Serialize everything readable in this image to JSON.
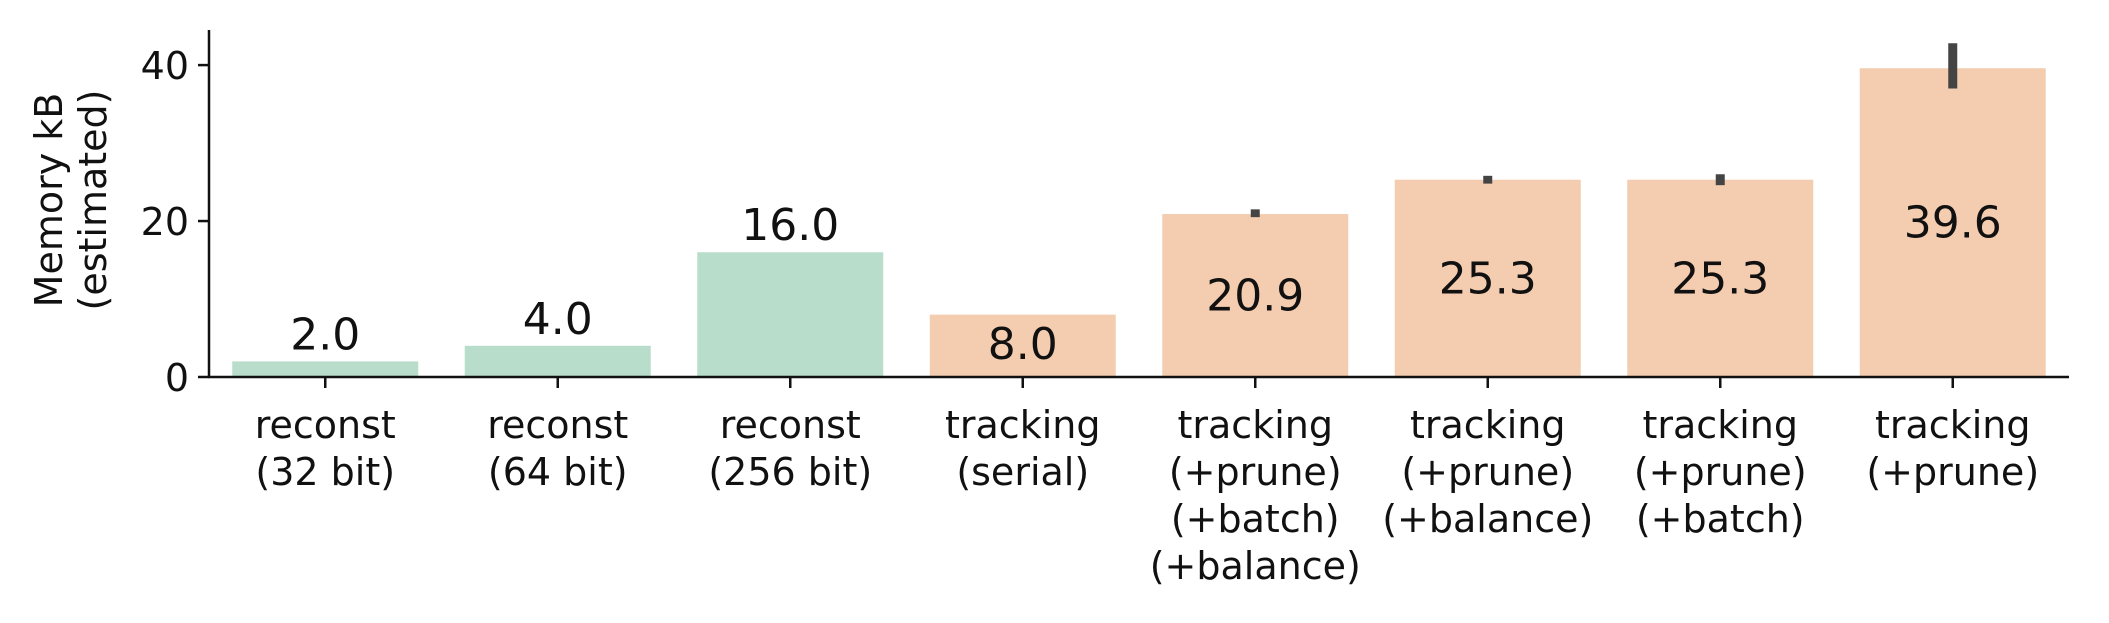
{
  "chart_data": {
    "type": "bar",
    "categories": [
      [
        "reconst",
        "(32 bit)"
      ],
      [
        "reconst",
        "(64 bit)"
      ],
      [
        "reconst",
        "(256 bit)"
      ],
      [
        "tracking",
        "(serial)"
      ],
      [
        "tracking",
        "(+prune)",
        "(+batch)",
        "(+balance)"
      ],
      [
        "tracking",
        "(+prune)",
        "(+balance)"
      ],
      [
        "tracking",
        "(+prune)",
        "(+batch)"
      ],
      [
        "tracking",
        "(+prune)"
      ]
    ],
    "values": [
      2.0,
      4.0,
      16.0,
      8.0,
      20.9,
      25.3,
      25.3,
      39.6
    ],
    "value_labels": [
      "2.0",
      "4.0",
      "16.0",
      "8.0",
      "20.9",
      "25.3",
      "25.3",
      "39.6"
    ],
    "error_bars": [
      null,
      null,
      null,
      null,
      [
        20.5,
        21.5
      ],
      [
        24.8,
        25.8
      ],
      [
        24.6,
        26.0
      ],
      [
        37.0,
        42.8
      ]
    ],
    "bar_colors": [
      "#b9ddcb",
      "#b9ddcb",
      "#b9ddcb",
      "#f4cdb1",
      "#f4cdb1",
      "#f4cdb1",
      "#f4cdb1",
      "#f4cdb1"
    ],
    "error_bar_color": "#444444",
    "ylabel_lines": [
      "Memory kB",
      "(estimated)"
    ],
    "yticks": [
      0,
      20,
      40
    ],
    "ylim": [
      0,
      44.5
    ],
    "grid": false,
    "legend": "none"
  }
}
